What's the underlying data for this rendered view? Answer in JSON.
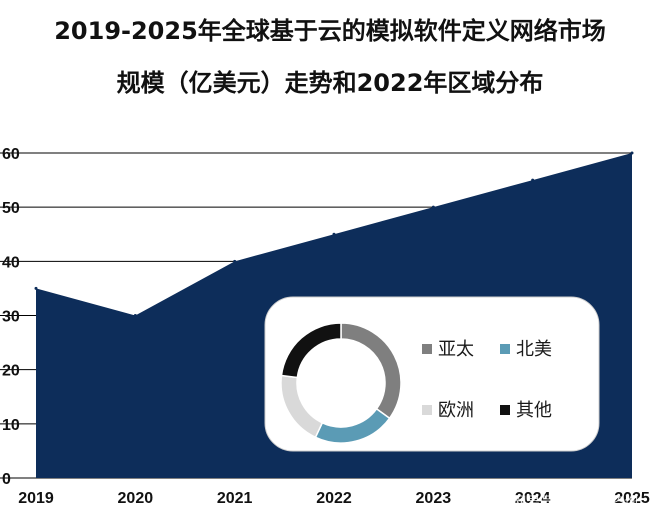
{
  "title_line1": "2019-2025年全球基于云的模拟软件定义网络市场",
  "title_line2": "规模（亿美元）走势和2022年区域分布",
  "watermark": "网易号 | 贝哲斯咨询",
  "colors": {
    "area": "#0d2d5a",
    "asia_pacific": "#7f7f7f",
    "north_america": "#5b9bb5",
    "europe": "#d9d9d9",
    "other": "#111111"
  },
  "chart_data": [
    {
      "type": "area",
      "title": "2019-2025年全球基于云的模拟软件定义网络市场规模（亿美元）走势",
      "x": [
        "2019",
        "2020",
        "2021",
        "2022",
        "2023",
        "2024",
        "2025"
      ],
      "values": [
        35,
        30,
        40,
        45,
        50,
        55,
        60
      ],
      "yticks": [
        "0",
        "10",
        "20",
        "30",
        "40",
        "50",
        "60"
      ],
      "ylim": [
        0,
        60
      ],
      "grid": true
    },
    {
      "type": "pie",
      "subtype": "donut",
      "title": "2022年区域分布",
      "labels": [
        "亚太",
        "北美",
        "欧洲",
        "其他"
      ],
      "values": [
        35,
        22,
        20,
        23
      ],
      "legend_position": "right"
    }
  ]
}
